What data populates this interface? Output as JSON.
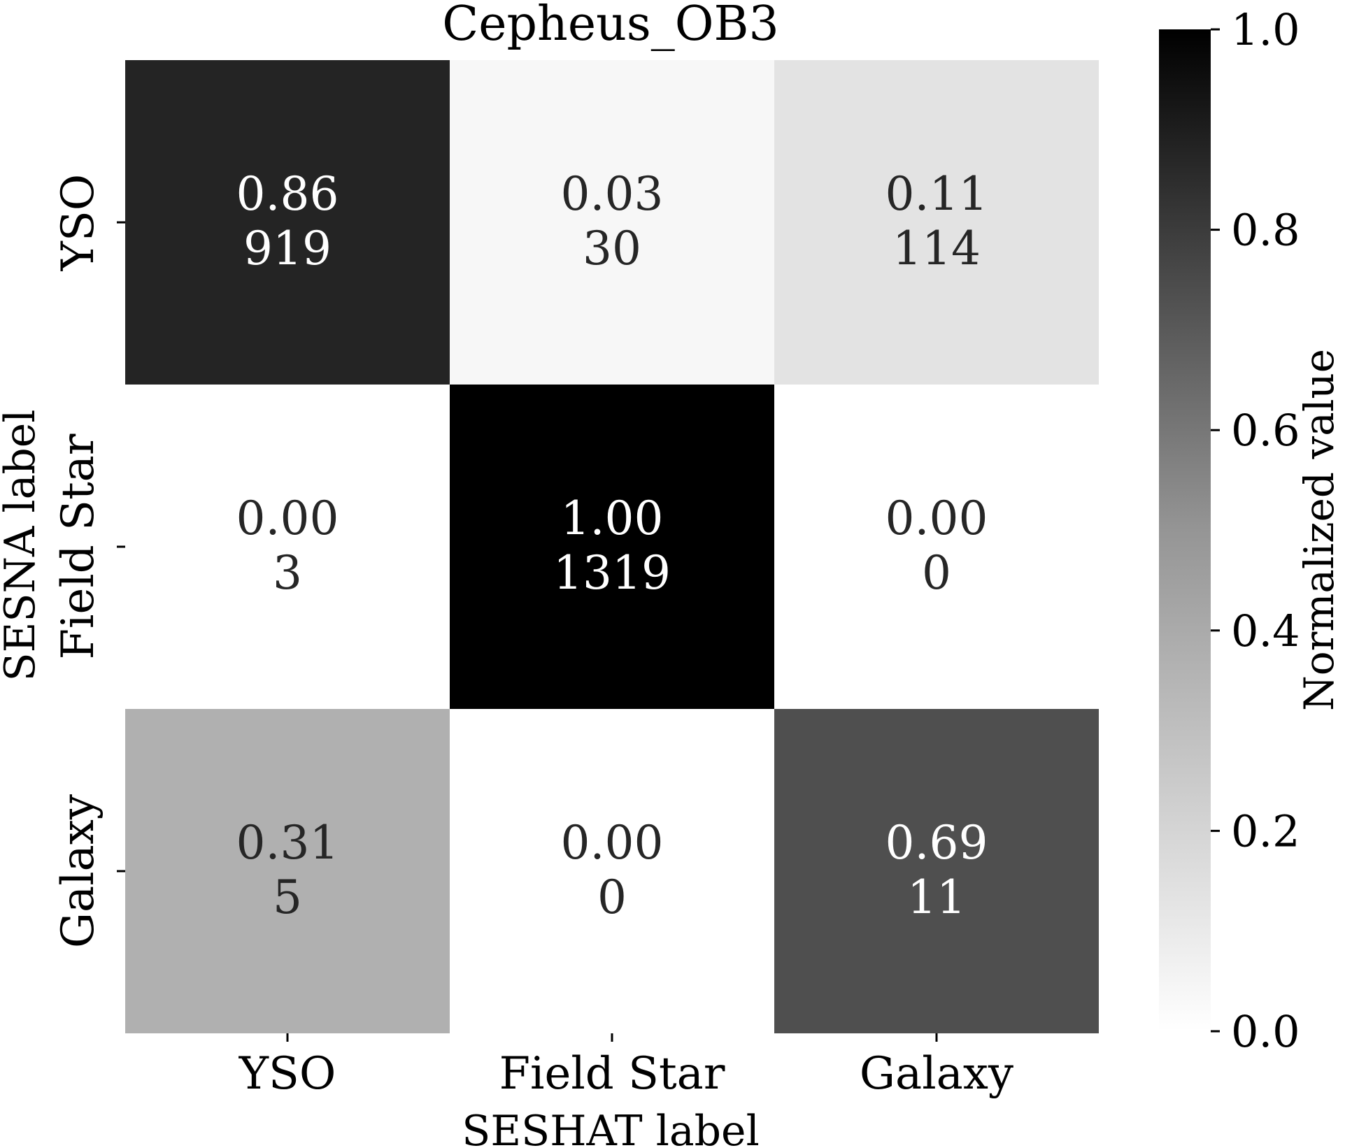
{
  "chart_data": {
    "type": "heatmap",
    "title": "Cepheus_OB3",
    "xlabel": "SESHAT label",
    "ylabel": "SESNA label",
    "x_categories": [
      "YSO",
      "Field Star",
      "Galaxy"
    ],
    "y_categories": [
      "YSO",
      "Field Star",
      "Galaxy"
    ],
    "normalized": [
      [
        0.86,
        0.03,
        0.11
      ],
      [
        0.0,
        1.0,
        0.0
      ],
      [
        0.31,
        0.0,
        0.69
      ]
    ],
    "normalized_labels": [
      [
        "0.86",
        "0.03",
        "0.11"
      ],
      [
        "0.00",
        "1.00",
        "0.00"
      ],
      [
        "0.31",
        "0.00",
        "0.69"
      ]
    ],
    "counts": [
      [
        919,
        30,
        114
      ],
      [
        3,
        1319,
        0
      ],
      [
        5,
        0,
        11
      ]
    ],
    "colorbar": {
      "label": "Normalized value",
      "range": [
        0.0,
        1.0
      ],
      "ticks": [
        "0.0",
        "0.2",
        "0.4",
        "0.6",
        "0.8",
        "1.0"
      ],
      "colormap": "Greys",
      "low_color": "#ffffff",
      "high_color": "#000000"
    }
  }
}
